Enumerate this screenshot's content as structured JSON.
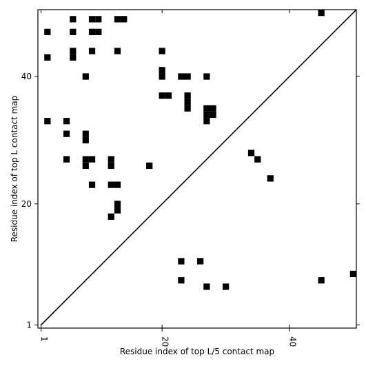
{
  "chart_data": {
    "type": "scatter",
    "title": "",
    "xlabel": "Residue index of top L/5 contact map",
    "ylabel": "Residue index of top L contact map",
    "xlim": [
      0.5,
      50.5
    ],
    "ylim": [
      0.5,
      50.5
    ],
    "x_ticks": [
      1,
      20,
      40
    ],
    "y_ticks": [
      1,
      20,
      40
    ],
    "x_tick_labels": [
      "1",
      "20",
      "40"
    ],
    "y_tick_labels": [
      "1",
      "20",
      "40"
    ],
    "diagonal": true,
    "grid": false,
    "marker": "square",
    "upper_triangle_points": [
      [
        45,
        50
      ],
      [
        6,
        49
      ],
      [
        9,
        49
      ],
      [
        10,
        49
      ],
      [
        13,
        49
      ],
      [
        14,
        49
      ],
      [
        2,
        47
      ],
      [
        6,
        47
      ],
      [
        9,
        47
      ],
      [
        10,
        47
      ],
      [
        6,
        44
      ],
      [
        9,
        44
      ],
      [
        13,
        44
      ],
      [
        20,
        44
      ],
      [
        2,
        43
      ],
      [
        6,
        43
      ],
      [
        20,
        41
      ],
      [
        20,
        40
      ],
      [
        8,
        40
      ],
      [
        23,
        40
      ],
      [
        24,
        40
      ],
      [
        27,
        40
      ],
      [
        20,
        37
      ],
      [
        21,
        37
      ],
      [
        24,
        37
      ],
      [
        24,
        36
      ],
      [
        24,
        35
      ],
      [
        27,
        35
      ],
      [
        28,
        35
      ],
      [
        27,
        34
      ],
      [
        28,
        34
      ],
      [
        27,
        33
      ],
      [
        2,
        33
      ],
      [
        5,
        33
      ],
      [
        5,
        31
      ],
      [
        8,
        31
      ],
      [
        8,
        30
      ],
      [
        34,
        28
      ],
      [
        35,
        27
      ],
      [
        5,
        27
      ],
      [
        8,
        27
      ],
      [
        9,
        27
      ],
      [
        12,
        27
      ],
      [
        8,
        26
      ],
      [
        12,
        26
      ],
      [
        18,
        26
      ],
      [
        37,
        24
      ],
      [
        9,
        23
      ],
      [
        12,
        23
      ],
      [
        13,
        23
      ],
      [
        13,
        20
      ],
      [
        13,
        19
      ],
      [
        12,
        18
      ]
    ],
    "lower_triangle_points": [
      [
        23,
        11
      ],
      [
        26,
        11
      ],
      [
        50,
        9
      ],
      [
        23,
        8
      ],
      [
        45,
        8
      ],
      [
        27,
        7
      ],
      [
        30,
        7
      ]
    ]
  }
}
